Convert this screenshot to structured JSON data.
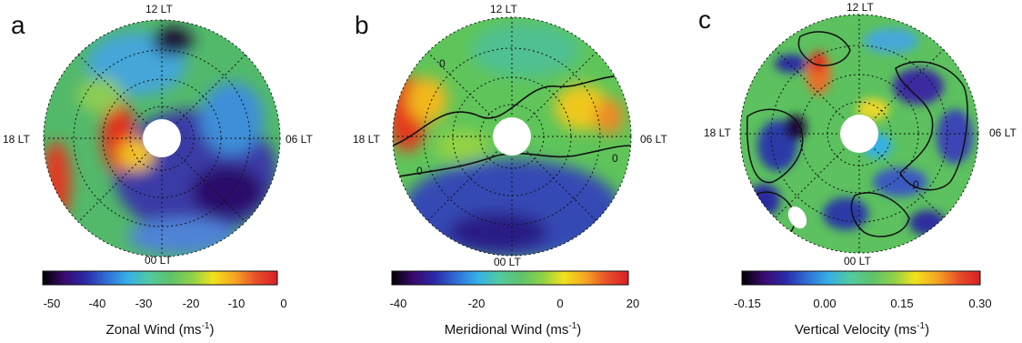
{
  "panels": [
    {
      "label": "a",
      "lt_top": "12 LT",
      "lt_left": "18 LT",
      "lt_right": "06 LT",
      "lt_bottom": "00 LT",
      "colorbar": {
        "ticks": [
          "-50",
          "-40",
          "-30",
          "-20",
          "-10",
          "0"
        ],
        "title": "Zonal Wind (ms",
        "unit_exp": "-1",
        "title_end": ")"
      }
    },
    {
      "label": "b",
      "lt_top": "12 LT",
      "lt_left": "18 LT",
      "lt_right": "06 LT",
      "lt_bottom": "00 LT",
      "contour_label": "0",
      "colorbar": {
        "ticks": [
          "-40",
          "-20",
          "0",
          "20"
        ],
        "title": "Meridional Wind (ms",
        "unit_exp": "-1",
        "title_end": ")"
      }
    },
    {
      "label": "c",
      "lt_top": "12 LT",
      "lt_left": "18 LT",
      "lt_right": "06 LT",
      "lt_bottom": "00 LT",
      "contour_label": "0",
      "colorbar": {
        "ticks": [
          "-0.15",
          "0.00",
          "0.15",
          "0.30"
        ],
        "title": "Vertical Velocity (ms",
        "unit_exp": "-1",
        "title_end": ")"
      }
    }
  ],
  "colors": {
    "colormap": [
      "#000000",
      "#3a0a6e",
      "#2a2aa8",
      "#2f6fd6",
      "#36b0e6",
      "#52c9a0",
      "#5dc36a",
      "#8dd14a",
      "#f2e21c",
      "#f5a623",
      "#e8502a",
      "#d81f26"
    ]
  }
}
